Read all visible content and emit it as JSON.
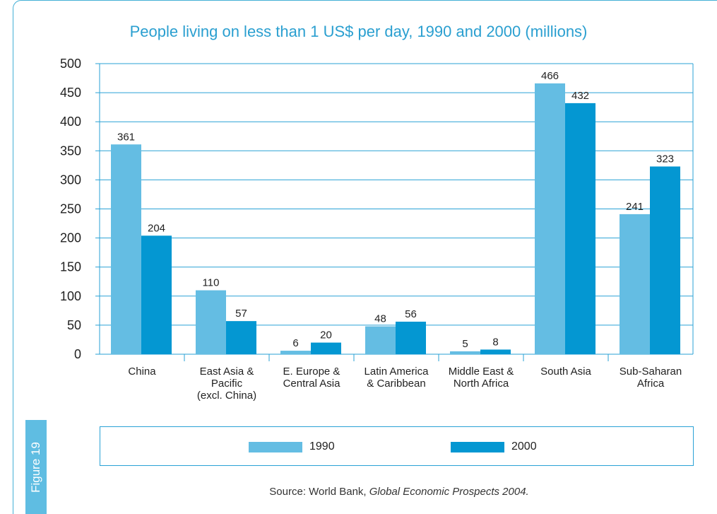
{
  "figure_label": "Figure 19",
  "source": {
    "prefix": "Source: World Bank, ",
    "publication": "Global Economic Prospects 2004."
  },
  "colors": {
    "series_1990": "#64bde3",
    "series_2000": "#0497d2",
    "title": "#2a9fd0",
    "grid": "#2aa2d6"
  },
  "chart_data": {
    "type": "bar",
    "title": "People living on less than 1 US$ per day, 1990 and 2000 (millions)",
    "xlabel": "",
    "ylabel": "",
    "ylim": [
      0,
      500
    ],
    "yticks": [
      0,
      50,
      100,
      150,
      200,
      250,
      300,
      350,
      400,
      450,
      500
    ],
    "grid": true,
    "legend": "bottom",
    "categories": [
      [
        "China"
      ],
      [
        "East Asia &",
        "Pacific",
        "(excl. China)"
      ],
      [
        "E. Europe &",
        "Central Asia"
      ],
      [
        "Latin America",
        "& Caribbean"
      ],
      [
        "Middle East &",
        "North Africa"
      ],
      [
        "South Asia"
      ],
      [
        "Sub-Saharan",
        "Africa"
      ]
    ],
    "series": [
      {
        "name": "1990",
        "values": [
          361,
          110,
          6,
          48,
          5,
          466,
          241
        ]
      },
      {
        "name": "2000",
        "values": [
          204,
          57,
          20,
          56,
          8,
          432,
          323
        ]
      }
    ]
  }
}
